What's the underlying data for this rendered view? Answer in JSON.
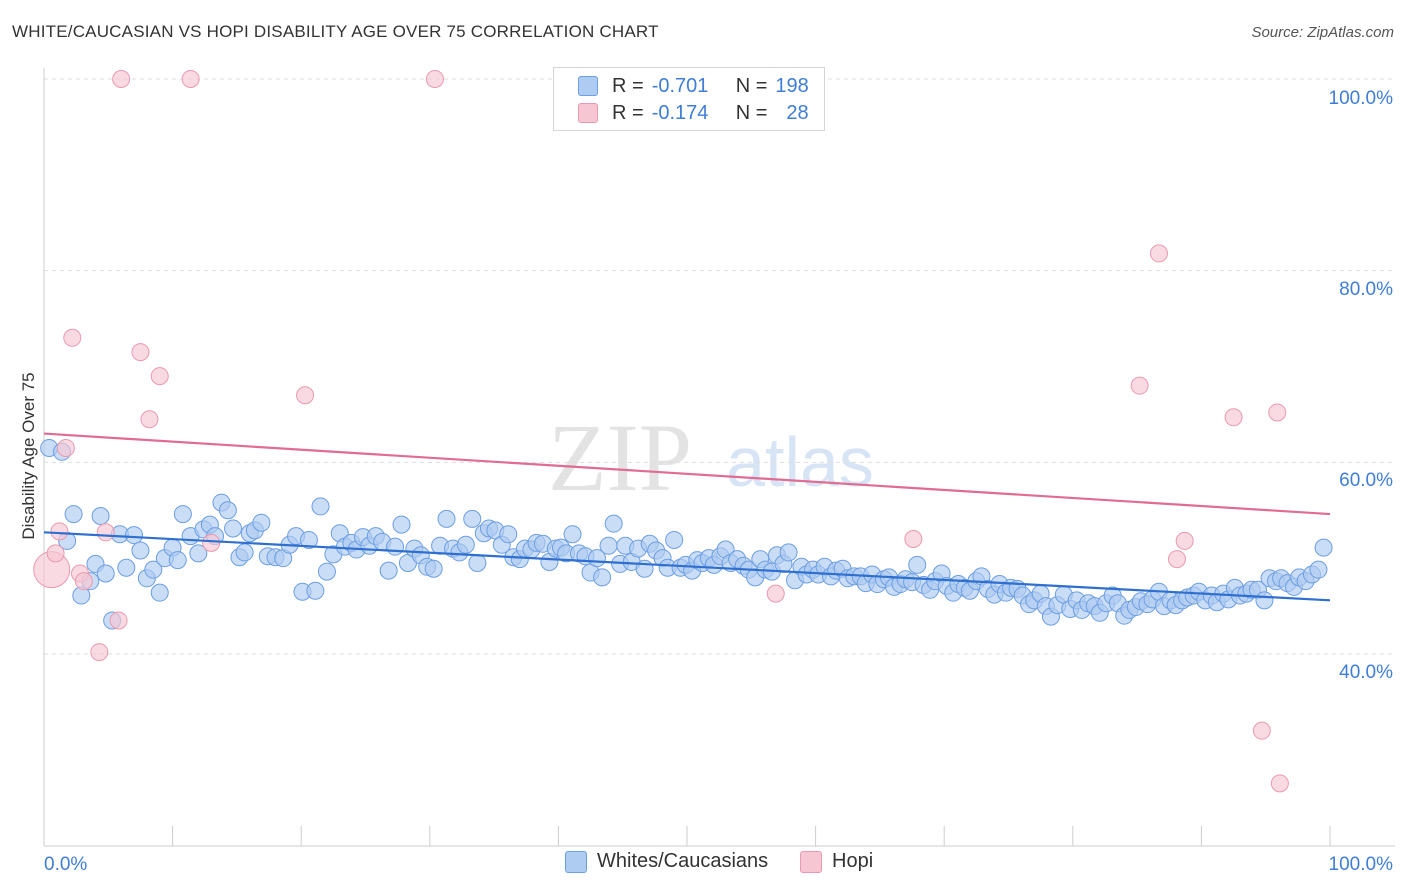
{
  "header": {
    "title": "WHITE/CAUCASIAN VS HOPI DISABILITY AGE OVER 75 CORRELATION CHART",
    "source": "Source: ZipAtlas.com"
  },
  "legend_box": {
    "rows": [
      {
        "r_label": "R =",
        "r_value": "-0.701",
        "n_label": "N =",
        "n_value": "198"
      },
      {
        "r_label": "R =",
        "r_value": "-0.174",
        "n_label": "N =",
        "n_value": "28"
      }
    ]
  },
  "watermark": {
    "part1": "ZIP",
    "part2": "atlas"
  },
  "colors": {
    "blue_fill": "#aecbf1",
    "blue_stroke": "#6d9ee3",
    "blue_line": "#2e6fd0",
    "pink_fill": "#f7c6d3",
    "pink_stroke": "#e89ab0",
    "pink_line": "#e06b93",
    "axis_label": "#3f7dd6",
    "grid": "#dddddd"
  },
  "chart_data": {
    "type": "scatter",
    "title": "WHITE/CAUCASIAN VS HOPI DISABILITY AGE OVER 75 CORRELATION CHART",
    "xlabel": "",
    "ylabel": "Disability Age Over 75",
    "x_tick_labels": [
      "0.0%",
      "100.0%"
    ],
    "y_tick_labels": [
      "40.0%",
      "60.0%",
      "80.0%",
      "100.0%"
    ],
    "xlim": [
      0,
      100
    ],
    "ylim": [
      20,
      100
    ],
    "grid": "horizontal dashed",
    "series": [
      {
        "name": "Whites/Caucasians",
        "color": "#aecbf1",
        "trend": {
          "x": [
            0,
            100
          ],
          "y": [
            52.7,
            45.6
          ]
        },
        "points": [
          [
            0.4,
            61.5
          ],
          [
            1.4,
            61.1
          ],
          [
            1.8,
            51.8
          ],
          [
            2.3,
            54.6
          ],
          [
            2.9,
            46.1
          ],
          [
            3.6,
            47.6
          ],
          [
            4.0,
            49.4
          ],
          [
            4.4,
            54.4
          ],
          [
            4.8,
            48.4
          ],
          [
            5.3,
            43.5
          ],
          [
            5.9,
            52.5
          ],
          [
            6.4,
            49.0
          ],
          [
            7.0,
            52.4
          ],
          [
            7.5,
            50.8
          ],
          [
            8.0,
            47.9
          ],
          [
            8.5,
            48.8
          ],
          [
            9.0,
            46.4
          ],
          [
            9.4,
            50.0
          ],
          [
            10.0,
            51.1
          ],
          [
            10.4,
            49.8
          ],
          [
            10.8,
            54.6
          ],
          [
            11.4,
            52.3
          ],
          [
            12.0,
            50.5
          ],
          [
            12.4,
            53.0
          ],
          [
            12.9,
            53.5
          ],
          [
            13.3,
            52.3
          ],
          [
            13.8,
            55.8
          ],
          [
            14.3,
            55.0
          ],
          [
            14.7,
            53.1
          ],
          [
            15.2,
            50.1
          ],
          [
            15.6,
            50.6
          ],
          [
            16.0,
            52.6
          ],
          [
            16.4,
            52.9
          ],
          [
            16.9,
            53.7
          ],
          [
            17.4,
            50.2
          ],
          [
            18.0,
            50.1
          ],
          [
            18.6,
            50.0
          ],
          [
            19.1,
            51.4
          ],
          [
            19.6,
            52.3
          ],
          [
            20.1,
            46.5
          ],
          [
            20.6,
            51.9
          ],
          [
            21.1,
            46.6
          ],
          [
            21.5,
            55.4
          ],
          [
            22.0,
            48.6
          ],
          [
            22.5,
            50.4
          ],
          [
            23.0,
            52.6
          ],
          [
            23.4,
            51.2
          ],
          [
            23.9,
            51.6
          ],
          [
            24.3,
            50.9
          ],
          [
            24.8,
            52.2
          ],
          [
            25.3,
            51.3
          ],
          [
            25.8,
            52.3
          ],
          [
            26.3,
            51.7
          ],
          [
            26.8,
            48.7
          ],
          [
            27.3,
            51.2
          ],
          [
            27.8,
            53.5
          ],
          [
            28.3,
            49.5
          ],
          [
            28.8,
            51.0
          ],
          [
            29.3,
            50.3
          ],
          [
            29.8,
            49.1
          ],
          [
            30.3,
            48.9
          ],
          [
            30.8,
            51.3
          ],
          [
            31.3,
            54.1
          ],
          [
            31.8,
            51.0
          ],
          [
            32.3,
            50.6
          ],
          [
            32.8,
            51.4
          ],
          [
            33.3,
            54.1
          ],
          [
            33.7,
            49.5
          ],
          [
            34.2,
            52.6
          ],
          [
            34.6,
            53.1
          ],
          [
            35.1,
            52.9
          ],
          [
            35.6,
            51.4
          ],
          [
            36.1,
            52.5
          ],
          [
            36.5,
            50.1
          ],
          [
            37.0,
            49.9
          ],
          [
            37.4,
            51.0
          ],
          [
            37.9,
            50.9
          ],
          [
            38.3,
            51.6
          ],
          [
            38.8,
            51.5
          ],
          [
            39.3,
            49.6
          ],
          [
            39.8,
            51.0
          ],
          [
            40.2,
            51.1
          ],
          [
            40.6,
            50.5
          ],
          [
            41.1,
            52.5
          ],
          [
            41.6,
            50.5
          ],
          [
            42.1,
            50.2
          ],
          [
            42.5,
            48.5
          ],
          [
            43.0,
            50.0
          ],
          [
            43.4,
            48.0
          ],
          [
            43.9,
            51.3
          ],
          [
            44.3,
            53.6
          ],
          [
            44.8,
            49.4
          ],
          [
            45.2,
            51.3
          ],
          [
            45.7,
            49.6
          ],
          [
            46.2,
            51.0
          ],
          [
            46.7,
            48.9
          ],
          [
            47.1,
            51.5
          ],
          [
            47.6,
            50.8
          ],
          [
            48.1,
            50.0
          ],
          [
            48.5,
            49.0
          ],
          [
            49.0,
            51.9
          ],
          [
            49.5,
            49.0
          ],
          [
            49.9,
            49.3
          ],
          [
            50.4,
            48.7
          ],
          [
            50.8,
            49.8
          ],
          [
            51.2,
            49.5
          ],
          [
            51.7,
            50.0
          ],
          [
            52.1,
            49.3
          ],
          [
            52.6,
            50.2
          ],
          [
            53.0,
            50.9
          ],
          [
            53.4,
            49.5
          ],
          [
            53.9,
            49.9
          ],
          [
            54.4,
            49.2
          ],
          [
            54.8,
            48.8
          ],
          [
            55.3,
            48.0
          ],
          [
            55.7,
            49.9
          ],
          [
            56.1,
            48.8
          ],
          [
            56.6,
            48.6
          ],
          [
            57.0,
            50.3
          ],
          [
            57.5,
            49.4
          ],
          [
            57.9,
            50.6
          ],
          [
            58.4,
            47.7
          ],
          [
            58.9,
            49.1
          ],
          [
            59.3,
            48.3
          ],
          [
            59.8,
            48.8
          ],
          [
            60.2,
            48.3
          ],
          [
            60.7,
            49.1
          ],
          [
            61.2,
            48.1
          ],
          [
            61.6,
            48.7
          ],
          [
            62.1,
            48.9
          ],
          [
            62.5,
            47.9
          ],
          [
            63.0,
            48.1
          ],
          [
            63.5,
            48.1
          ],
          [
            63.9,
            47.4
          ],
          [
            64.4,
            48.3
          ],
          [
            64.8,
            47.3
          ],
          [
            65.3,
            47.8
          ],
          [
            65.7,
            48.0
          ],
          [
            66.1,
            47.0
          ],
          [
            66.6,
            47.3
          ],
          [
            67.0,
            47.8
          ],
          [
            67.5,
            47.5
          ],
          [
            67.9,
            49.3
          ],
          [
            68.4,
            47.2
          ],
          [
            68.9,
            46.7
          ],
          [
            69.3,
            47.6
          ],
          [
            69.8,
            48.4
          ],
          [
            70.2,
            47.1
          ],
          [
            70.7,
            46.4
          ],
          [
            71.1,
            47.3
          ],
          [
            71.6,
            46.9
          ],
          [
            72.0,
            46.6
          ],
          [
            72.5,
            47.6
          ],
          [
            72.9,
            48.1
          ],
          [
            73.4,
            46.8
          ],
          [
            73.9,
            46.2
          ],
          [
            74.3,
            47.3
          ],
          [
            74.8,
            46.4
          ],
          [
            75.2,
            46.9
          ],
          [
            75.7,
            46.8
          ],
          [
            76.1,
            46.1
          ],
          [
            76.6,
            45.2
          ],
          [
            77.0,
            45.6
          ],
          [
            77.5,
            46.3
          ],
          [
            77.9,
            45.0
          ],
          [
            78.3,
            43.9
          ],
          [
            78.8,
            45.1
          ],
          [
            79.3,
            46.2
          ],
          [
            79.8,
            44.7
          ],
          [
            80.3,
            45.6
          ],
          [
            80.7,
            44.6
          ],
          [
            81.2,
            45.3
          ],
          [
            81.7,
            45.0
          ],
          [
            82.1,
            44.3
          ],
          [
            82.6,
            45.3
          ],
          [
            83.1,
            46.1
          ],
          [
            83.5,
            45.3
          ],
          [
            84.0,
            44.0
          ],
          [
            84.4,
            44.6
          ],
          [
            84.9,
            44.9
          ],
          [
            85.3,
            45.5
          ],
          [
            85.8,
            45.2
          ],
          [
            86.2,
            45.7
          ],
          [
            86.7,
            46.5
          ],
          [
            87.1,
            45.0
          ],
          [
            87.6,
            45.6
          ],
          [
            88.0,
            45.1
          ],
          [
            88.5,
            45.6
          ],
          [
            88.9,
            45.9
          ],
          [
            89.4,
            46.1
          ],
          [
            89.8,
            46.5
          ],
          [
            90.3,
            45.6
          ],
          [
            90.8,
            46.1
          ],
          [
            91.2,
            45.4
          ],
          [
            91.7,
            46.3
          ],
          [
            92.1,
            45.7
          ],
          [
            92.6,
            46.9
          ],
          [
            93.0,
            46.1
          ],
          [
            93.5,
            46.3
          ],
          [
            93.9,
            46.7
          ],
          [
            94.4,
            46.7
          ],
          [
            94.9,
            45.6
          ],
          [
            95.3,
            47.9
          ],
          [
            95.8,
            47.6
          ],
          [
            96.2,
            47.9
          ],
          [
            96.7,
            47.4
          ],
          [
            97.2,
            47.0
          ],
          [
            97.6,
            48.0
          ],
          [
            98.1,
            47.6
          ],
          [
            98.6,
            48.3
          ],
          [
            99.1,
            48.8
          ],
          [
            99.5,
            51.1
          ]
        ]
      },
      {
        "name": "Hopi",
        "color": "#f7c6d3",
        "trend": {
          "x": [
            0,
            100
          ],
          "y": [
            63.0,
            54.6
          ]
        },
        "points": [
          [
            0.6,
            48.8
          ],
          [
            0.9,
            50.5
          ],
          [
            1.2,
            52.8
          ],
          [
            1.7,
            61.5
          ],
          [
            2.2,
            73.0
          ],
          [
            2.8,
            48.4
          ],
          [
            3.1,
            47.6
          ],
          [
            4.3,
            40.2
          ],
          [
            4.8,
            52.7
          ],
          [
            5.8,
            43.5
          ],
          [
            6.0,
            100.0
          ],
          [
            7.5,
            71.5
          ],
          [
            8.2,
            64.5
          ],
          [
            9.0,
            69.0
          ],
          [
            11.4,
            100.0
          ],
          [
            13.0,
            51.6
          ],
          [
            20.3,
            67.0
          ],
          [
            30.4,
            100.0
          ],
          [
            56.9,
            46.3
          ],
          [
            67.6,
            52.0
          ],
          [
            85.2,
            68.0
          ],
          [
            86.7,
            81.8
          ],
          [
            88.1,
            49.9
          ],
          [
            88.7,
            51.8
          ],
          [
            92.5,
            64.7
          ],
          [
            94.7,
            32.0
          ],
          [
            95.9,
            65.2
          ],
          [
            96.1,
            26.5
          ]
        ]
      }
    ]
  }
}
